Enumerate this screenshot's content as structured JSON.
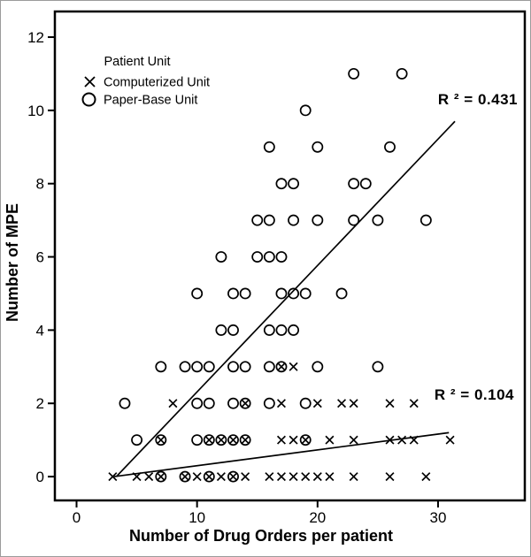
{
  "figure": {
    "background": "#ffffff",
    "frame_color": "#9b9b9b",
    "ink_color": "#000000"
  },
  "chart_data": {
    "type": "scatter",
    "title": "",
    "xlabel": "Number of Drug Orders per patient",
    "ylabel": "Number of MPE",
    "xlim": [
      -1.8,
      37.2
    ],
    "ylim": [
      -0.65,
      12.7
    ],
    "x_ticks": [
      0,
      10,
      20,
      30
    ],
    "y_ticks": [
      0,
      2,
      4,
      6,
      8,
      10,
      12
    ],
    "grid": false,
    "legend": {
      "title": "Patient Unit",
      "position": "top-left-inside",
      "items": [
        {
          "label": "Computerized Unit",
          "marker": "x"
        },
        {
          "label": "Paper-Base Unit",
          "marker": "circle"
        }
      ]
    },
    "series": [
      {
        "name": "Computerized Unit",
        "marker": "x",
        "color": "#000000",
        "points": [
          [
            3,
            0
          ],
          [
            5,
            0
          ],
          [
            6,
            0
          ],
          [
            7,
            0
          ],
          [
            9,
            0
          ],
          [
            10,
            0
          ],
          [
            11,
            0
          ],
          [
            12,
            0
          ],
          [
            13,
            0
          ],
          [
            14,
            0
          ],
          [
            16,
            0
          ],
          [
            17,
            0
          ],
          [
            18,
            0
          ],
          [
            19,
            0
          ],
          [
            20,
            0
          ],
          [
            21,
            0
          ],
          [
            23,
            0
          ],
          [
            26,
            0
          ],
          [
            29,
            0
          ],
          [
            7,
            1
          ],
          [
            11,
            1
          ],
          [
            12,
            1
          ],
          [
            13,
            1
          ],
          [
            14,
            1
          ],
          [
            17,
            1
          ],
          [
            18,
            1
          ],
          [
            19,
            1
          ],
          [
            21,
            1
          ],
          [
            23,
            1
          ],
          [
            26,
            1
          ],
          [
            27,
            1
          ],
          [
            28,
            1
          ],
          [
            31,
            1
          ],
          [
            8,
            2
          ],
          [
            14,
            2
          ],
          [
            17,
            2
          ],
          [
            20,
            2
          ],
          [
            22,
            2
          ],
          [
            23,
            2
          ],
          [
            26,
            2
          ],
          [
            28,
            2
          ],
          [
            17,
            3
          ],
          [
            18,
            3
          ]
        ]
      },
      {
        "name": "Paper-Base Unit",
        "marker": "circle",
        "color": "#000000",
        "points": [
          [
            7,
            0
          ],
          [
            9,
            0
          ],
          [
            11,
            0
          ],
          [
            13,
            0
          ],
          [
            5,
            1
          ],
          [
            7,
            1
          ],
          [
            10,
            1
          ],
          [
            11,
            1
          ],
          [
            12,
            1
          ],
          [
            13,
            1
          ],
          [
            14,
            1
          ],
          [
            19,
            1
          ],
          [
            4,
            2
          ],
          [
            10,
            2
          ],
          [
            11,
            2
          ],
          [
            13,
            2
          ],
          [
            14,
            2
          ],
          [
            16,
            2
          ],
          [
            19,
            2
          ],
          [
            7,
            3
          ],
          [
            9,
            3
          ],
          [
            10,
            3
          ],
          [
            11,
            3
          ],
          [
            13,
            3
          ],
          [
            14,
            3
          ],
          [
            16,
            3
          ],
          [
            17,
            3
          ],
          [
            20,
            3
          ],
          [
            25,
            3
          ],
          [
            12,
            4
          ],
          [
            13,
            4
          ],
          [
            16,
            4
          ],
          [
            17,
            4
          ],
          [
            18,
            4
          ],
          [
            10,
            5
          ],
          [
            13,
            5
          ],
          [
            14,
            5
          ],
          [
            17,
            5
          ],
          [
            18,
            5
          ],
          [
            19,
            5
          ],
          [
            22,
            5
          ],
          [
            12,
            6
          ],
          [
            15,
            6
          ],
          [
            16,
            6
          ],
          [
            17,
            6
          ],
          [
            15,
            7
          ],
          [
            16,
            7
          ],
          [
            18,
            7
          ],
          [
            20,
            7
          ],
          [
            23,
            7
          ],
          [
            25,
            7
          ],
          [
            29,
            7
          ],
          [
            17,
            8
          ],
          [
            18,
            8
          ],
          [
            23,
            8
          ],
          [
            24,
            8
          ],
          [
            16,
            9
          ],
          [
            20,
            9
          ],
          [
            26,
            9
          ],
          [
            19,
            10
          ],
          [
            23,
            11
          ],
          [
            27,
            11
          ]
        ]
      }
    ],
    "trend_lines": [
      {
        "series": "Paper-Base Unit",
        "label": "R ² = 0.431",
        "r_squared": 0.431,
        "from": [
          3.3,
          0.0
        ],
        "to": [
          31.4,
          9.7
        ]
      },
      {
        "series": "Computerized Unit",
        "label": "R ² = 0.104",
        "r_squared": 0.104,
        "from": [
          3.1,
          0.0
        ],
        "to": [
          30.9,
          1.2
        ]
      }
    ]
  }
}
